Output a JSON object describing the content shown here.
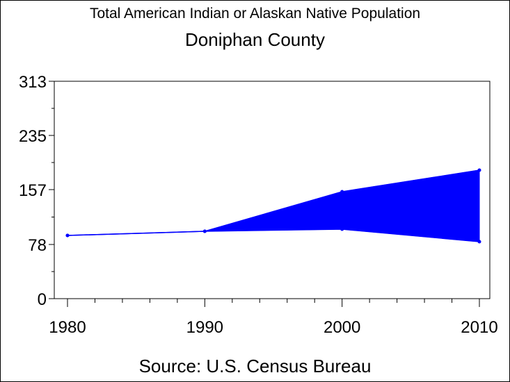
{
  "header": {
    "title": "Total American Indian or Alaskan Native Population",
    "subtitle": "Doniphan County"
  },
  "footer": {
    "source": "Source: U.S. Census Bureau"
  },
  "colors": {
    "series": "#0000ff",
    "axis": "#000000"
  },
  "chart_data": {
    "type": "area",
    "title": "Total American Indian or Alaskan Native Population",
    "subtitle": "Doniphan County",
    "xlabel": "",
    "ylabel": "",
    "x_ticks": [
      1980,
      1990,
      2000,
      2010
    ],
    "y_ticks": [
      0,
      78,
      157,
      235,
      313
    ],
    "xlim": [
      1980,
      2010
    ],
    "ylim": [
      0,
      313
    ],
    "grid": false,
    "series": [
      {
        "x": [
          1980,
          1990,
          2000,
          2010
        ],
        "values": [
          91,
          97,
          154,
          185
        ]
      },
      {
        "x": [
          1980,
          1990,
          2000,
          2010
        ],
        "values": [
          91,
          97,
          100,
          82
        ]
      }
    ]
  }
}
